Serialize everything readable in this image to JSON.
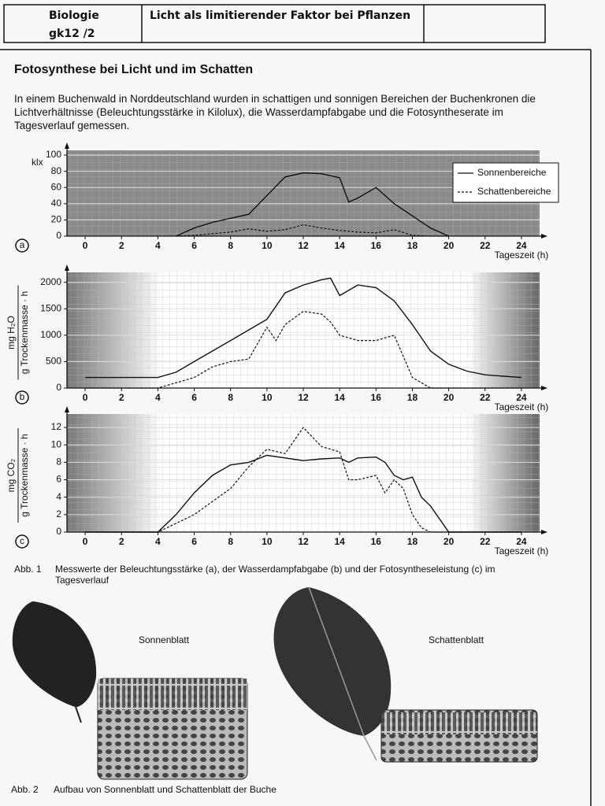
{
  "header": {
    "subject": "Biologie",
    "course": "gk12 /2",
    "topic": "Licht als limitierender Faktor bei Pflanzen"
  },
  "heading": "Fotosynthese bei Licht und im Schatten",
  "intro": "In einem Buchenwald in Norddeutschland wurden in schattigen und sonnigen Bereichen der Buchenkronen die Lichtverhältnisse (Beleuchtungsstärke in Kilolux), die Wasserdampfabgabe und die Fotosyntheserate im Tagesverlauf gemessen.",
  "chart_data": [
    {
      "type": "line",
      "panel": "a",
      "ylabel": "klx",
      "xlabel": "Tageszeit (h)",
      "grid": true,
      "legend": "upper right",
      "xlim": [
        -1,
        25
      ],
      "xticks": [
        0,
        2,
        4,
        6,
        8,
        10,
        12,
        14,
        16,
        18,
        20,
        22,
        24
      ],
      "ylim": [
        0,
        100
      ],
      "yticks": [
        0,
        20,
        40,
        60,
        80,
        100
      ],
      "x": [
        5,
        6,
        7,
        8,
        9,
        10,
        11,
        12,
        13,
        14,
        14.5,
        15,
        16,
        17,
        18,
        19,
        20
      ],
      "series": [
        {
          "name": "Sonnenbereiche",
          "color": "#111111",
          "style": "solid",
          "values": [
            0,
            10,
            17,
            22,
            27,
            50,
            73,
            78,
            77,
            72,
            42,
            47,
            60,
            40,
            25,
            10,
            0
          ]
        },
        {
          "name": "Schattenbereiche",
          "color": "#111111",
          "style": "dashed",
          "values": [
            0,
            1,
            3,
            5,
            9,
            6,
            8,
            14,
            10,
            7,
            6,
            5,
            4,
            8,
            1,
            0,
            0
          ]
        }
      ]
    },
    {
      "type": "line",
      "panel": "b",
      "ylabel": [
        "mg H₂O",
        "g Trockenmasse · h"
      ],
      "xlabel": "Tageszeit (h)",
      "grid": true,
      "xlim": [
        -1,
        25
      ],
      "xticks": [
        0,
        2,
        4,
        6,
        8,
        10,
        12,
        14,
        16,
        18,
        20,
        22,
        24
      ],
      "ylim": [
        0,
        2100
      ],
      "yticks": [
        0,
        500,
        1000,
        1500,
        2000
      ],
      "x": [
        0,
        4,
        5,
        6,
        7,
        8,
        9,
        10,
        10.5,
        11,
        12,
        13,
        13.5,
        14,
        15,
        16,
        17,
        18,
        19,
        20,
        21,
        22,
        24
      ],
      "series": [
        {
          "color": "#111111",
          "style": "solid",
          "values": [
            200,
            200,
            300,
            500,
            700,
            900,
            1100,
            1300,
            1550,
            1800,
            1950,
            2050,
            2080,
            1750,
            1950,
            1900,
            1650,
            1200,
            700,
            450,
            320,
            250,
            200
          ]
        },
        {
          "color": "#111111",
          "style": "dashed",
          "values": [
            0,
            0,
            100,
            200,
            400,
            500,
            550,
            1150,
            900,
            1200,
            1450,
            1400,
            1250,
            1000,
            900,
            900,
            1000,
            200,
            0,
            0,
            0,
            0,
            0
          ]
        }
      ]
    },
    {
      "type": "line",
      "panel": "c",
      "ylabel": [
        "mg CO₂",
        "g Trockenmasse · h"
      ],
      "xlabel": "Tageszeit (h)",
      "grid": true,
      "xlim": [
        -1,
        25
      ],
      "xticks": [
        0,
        2,
        4,
        6,
        8,
        10,
        12,
        14,
        16,
        18,
        20,
        22,
        24
      ],
      "ylim": [
        0,
        13
      ],
      "yticks": [
        0,
        2,
        4,
        6,
        8,
        10,
        12
      ],
      "x": [
        0,
        4,
        5,
        6,
        7,
        8,
        9,
        10,
        11,
        12,
        13,
        14,
        14.5,
        15,
        16,
        16.5,
        17,
        17.5,
        18,
        18.5,
        19,
        20,
        24
      ],
      "series": [
        {
          "color": "#111111",
          "style": "solid",
          "values": [
            0,
            0,
            2,
            4.5,
            6.5,
            7.7,
            8,
            8.8,
            8.5,
            8.2,
            8.4,
            8.5,
            8,
            8.5,
            8.6,
            8,
            6.5,
            6,
            6.3,
            4,
            3,
            0,
            0
          ]
        },
        {
          "color": "#111111",
          "style": "dashed",
          "values": [
            0,
            0,
            1,
            2,
            3.5,
            5,
            7.5,
            9.5,
            9,
            12,
            9.8,
            9.2,
            6,
            6,
            6.5,
            4.5,
            6,
            5,
            2,
            0.5,
            0,
            0,
            0
          ]
        }
      ]
    }
  ],
  "figure1": {
    "label": "Abb. 1",
    "caption": "Messwerte der Beleuchtungsstärke (a), der Wasserdampfabgabe (b) und der Fotosyntheseleistung (c) im Tagesverlauf"
  },
  "figure2": {
    "label": "Abb. 2",
    "caption": "Aufbau von Sonnenblatt und Schattenblatt der Buche",
    "leaf_labels": [
      "Sonnenblatt",
      "Schattenblatt"
    ]
  }
}
